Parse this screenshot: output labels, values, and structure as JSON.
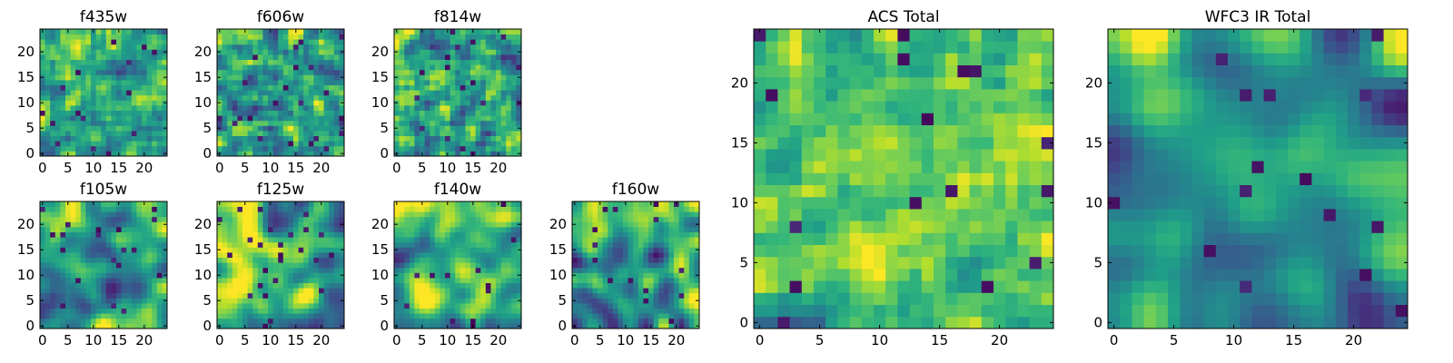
{
  "chart_data": [
    {
      "type": "heatmap",
      "title": "f435w",
      "colormap": "viridis",
      "grid": false,
      "nx": 25,
      "ny": 25,
      "seed": 11,
      "smooth": 0.2,
      "mean": 0.62,
      "spread": 0.42,
      "hot_corner": 0.0,
      "xlim": [
        -0.5,
        24.5
      ],
      "ylim": [
        -0.5,
        24.5
      ],
      "xticks": [
        0,
        5,
        10,
        15,
        20
      ],
      "yticks": [
        0,
        5,
        10,
        15,
        20
      ]
    },
    {
      "type": "heatmap",
      "title": "f606w",
      "colormap": "viridis",
      "grid": false,
      "nx": 25,
      "ny": 25,
      "seed": 23,
      "smooth": 0.25,
      "mean": 0.6,
      "spread": 0.44,
      "hot_corner": 0.0,
      "xlim": [
        -0.5,
        24.5
      ],
      "ylim": [
        -0.5,
        24.5
      ],
      "xticks": [
        0,
        5,
        10,
        15,
        20
      ],
      "yticks": [
        0,
        5,
        10,
        15,
        20
      ]
    },
    {
      "type": "heatmap",
      "title": "f814w",
      "colormap": "viridis",
      "grid": false,
      "nx": 25,
      "ny": 25,
      "seed": 37,
      "smooth": 0.2,
      "mean": 0.6,
      "spread": 0.46,
      "hot_corner": 0.0,
      "xlim": [
        -0.5,
        24.5
      ],
      "ylim": [
        -0.5,
        24.5
      ],
      "xticks": [
        0,
        5,
        10,
        15,
        20
      ],
      "yticks": [
        0,
        5,
        10,
        15,
        20
      ]
    },
    {
      "type": "heatmap",
      "title": "f105w",
      "colormap": "viridis",
      "grid": false,
      "nx": 25,
      "ny": 25,
      "seed": 41,
      "smooth": 0.8,
      "mean": 0.6,
      "spread": 0.5,
      "hot_corner": 0.3,
      "xlim": [
        -0.5,
        24.5
      ],
      "ylim": [
        -0.5,
        24.5
      ],
      "xticks": [
        0,
        5,
        10,
        15,
        20
      ],
      "yticks": [
        0,
        5,
        10,
        15,
        20
      ]
    },
    {
      "type": "heatmap",
      "title": "f125w",
      "colormap": "viridis",
      "grid": false,
      "nx": 25,
      "ny": 25,
      "seed": 53,
      "smooth": 0.8,
      "mean": 0.62,
      "spread": 0.5,
      "hot_corner": 0.3,
      "xlim": [
        -0.5,
        24.5
      ],
      "ylim": [
        -0.5,
        24.5
      ],
      "xticks": [
        0,
        5,
        10,
        15,
        20
      ],
      "yticks": [
        0,
        5,
        10,
        15,
        20
      ]
    },
    {
      "type": "heatmap",
      "title": "f140w",
      "colormap": "viridis",
      "grid": false,
      "nx": 25,
      "ny": 25,
      "seed": 67,
      "smooth": 0.85,
      "mean": 0.58,
      "spread": 0.52,
      "hot_corner": 0.3,
      "xlim": [
        -0.5,
        24.5
      ],
      "ylim": [
        -0.5,
        24.5
      ],
      "xticks": [
        0,
        5,
        10,
        15,
        20
      ],
      "yticks": [
        0,
        5,
        10,
        15,
        20
      ]
    },
    {
      "type": "heatmap",
      "title": "f160w",
      "colormap": "viridis",
      "grid": false,
      "nx": 25,
      "ny": 25,
      "seed": 79,
      "smooth": 0.85,
      "mean": 0.55,
      "spread": 0.55,
      "hot_corner": 0.3,
      "xlim": [
        -0.5,
        24.5
      ],
      "ylim": [
        -0.5,
        24.5
      ],
      "xticks": [
        0,
        5,
        10,
        15,
        20
      ],
      "yticks": [
        0,
        5,
        10,
        15,
        20
      ]
    },
    {
      "type": "heatmap",
      "title": "ACS Total",
      "colormap": "viridis",
      "grid": false,
      "nx": 25,
      "ny": 25,
      "seed": 97,
      "smooth": 0.25,
      "mean": 0.66,
      "spread": 0.38,
      "hot_corner": 0.0,
      "xlim": [
        -0.5,
        24.5
      ],
      "ylim": [
        -0.5,
        24.5
      ],
      "xticks": [
        0,
        5,
        10,
        15,
        20
      ],
      "yticks": [
        0,
        5,
        10,
        15,
        20
      ]
    },
    {
      "type": "heatmap",
      "title": "WFC3 IR Total",
      "colormap": "viridis",
      "grid": false,
      "nx": 25,
      "ny": 25,
      "seed": 113,
      "smooth": 0.9,
      "mean": 0.55,
      "spread": 0.5,
      "hot_corner": 0.35,
      "xlim": [
        -0.5,
        24.5
      ],
      "ylim": [
        -0.5,
        24.5
      ],
      "xticks": [
        0,
        5,
        10,
        15,
        20
      ],
      "yticks": [
        0,
        5,
        10,
        15,
        20
      ]
    }
  ]
}
